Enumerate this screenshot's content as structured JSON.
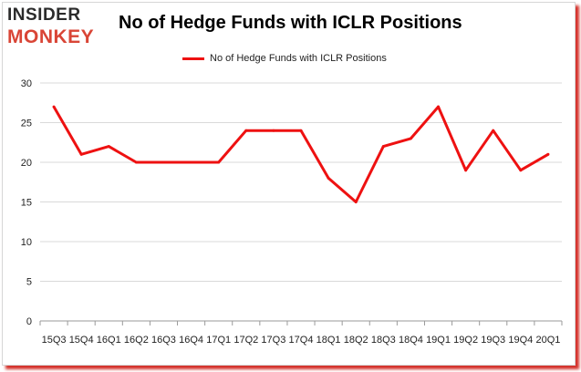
{
  "logo": {
    "top": "INSIDER",
    "bottom": "MONKEY"
  },
  "chart_data": {
    "type": "line",
    "title": "No of Hedge Funds with ICLR Positions",
    "xlabel": "",
    "ylabel": "",
    "categories": [
      "15Q3",
      "15Q4",
      "16Q1",
      "16Q2",
      "16Q3",
      "16Q4",
      "17Q1",
      "17Q2",
      "17Q3",
      "17Q4",
      "18Q1",
      "18Q2",
      "18Q3",
      "18Q4",
      "19Q1",
      "19Q2",
      "19Q3",
      "19Q4",
      "20Q1"
    ],
    "series": [
      {
        "name": "No of Hedge Funds with ICLR Positions",
        "color": "#ee1111",
        "values": [
          27,
          21,
          22,
          20,
          20,
          20,
          20,
          24,
          24,
          24,
          18,
          15,
          22,
          23,
          27,
          19,
          24,
          19,
          21
        ]
      }
    ],
    "ylim": [
      0,
      30
    ],
    "yticks": [
      0,
      5,
      10,
      15,
      20,
      25,
      30
    ],
    "grid": true,
    "legend_position": "top"
  }
}
